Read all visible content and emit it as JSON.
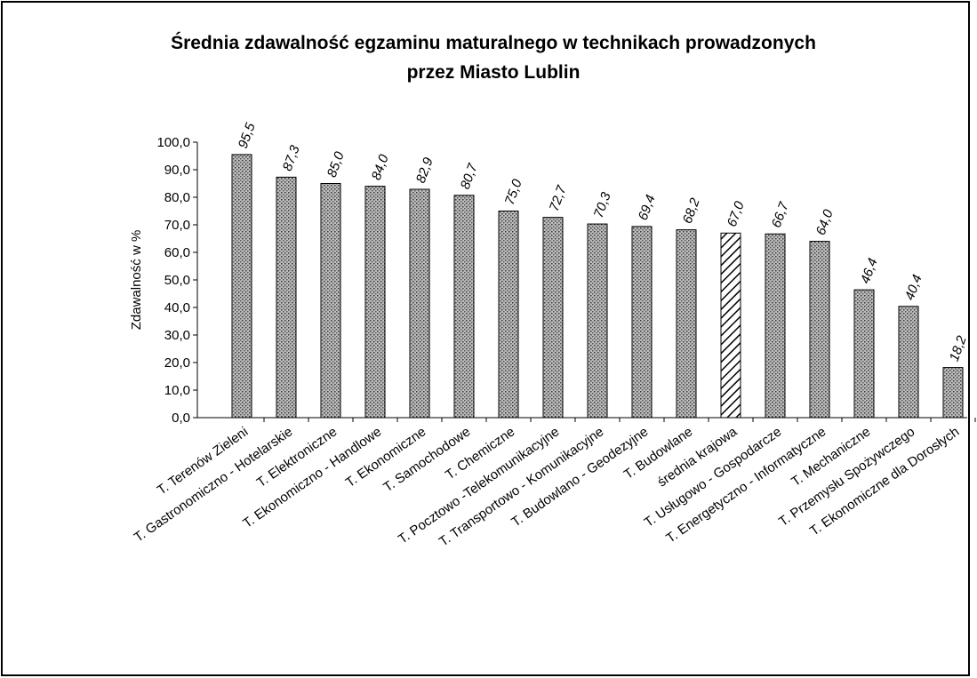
{
  "chart_data": {
    "type": "bar",
    "title": [
      "Średnia zdawalność egzaminu maturalnego w technikach prowadzonych",
      "przez Miasto Lublin"
    ],
    "y_label": "Zdawalność w %",
    "categories": [
      "T. Terenów Zieleni",
      "T. Gastronomiczno - Hotelarskie",
      "T. Elektroniczne",
      "T. Ekonomiczno - Handlowe",
      "T. Ekonomiczne",
      "T. Samochodowe",
      "T. Chemiczne",
      "T. Pocztowo -Telekomunikacyjne",
      "T. Transportowo - Komunikacyjne",
      "T. Budowlano - Geodezyjne",
      "T. Budowlane",
      "średnia krajowa",
      "T. Usługowo - Gospodarcze",
      "T. Energetyczno - Informatyczne",
      "T. Mechaniczne",
      "T. Przemysłu Spożywczego",
      "T. Ekonomiczne dla Dorosłych"
    ],
    "values": [
      95.5,
      87.3,
      85.0,
      84.0,
      82.9,
      80.7,
      75.0,
      72.7,
      70.3,
      69.4,
      68.2,
      67.0,
      66.7,
      64.0,
      46.4,
      40.4,
      18.2
    ],
    "value_labels": [
      "95,5",
      "87,3",
      "85,0",
      "84,0",
      "82,9",
      "80,7",
      "75,0",
      "72,7",
      "70,3",
      "69,4",
      "68,2",
      "67,0",
      "66,7",
      "64,0",
      "46,4",
      "40,4",
      "18,2"
    ],
    "patterns": [
      "dots",
      "dots",
      "dots",
      "dots",
      "dots",
      "dots",
      "dots",
      "dots",
      "dots",
      "dots",
      "dots",
      "hatch",
      "dots",
      "dots",
      "dots",
      "dots",
      "dots"
    ],
    "ylim": [
      0,
      100
    ],
    "yticks": [
      {
        "value": 0,
        "label": "0,0"
      },
      {
        "value": 10,
        "label": "10,0"
      },
      {
        "value": 20,
        "label": "20,0"
      },
      {
        "value": 30,
        "label": "30,0"
      },
      {
        "value": 40,
        "label": "40,0"
      },
      {
        "value": 50,
        "label": "50,0"
      },
      {
        "value": 60,
        "label": "60,0"
      },
      {
        "value": 70,
        "label": "70,0"
      },
      {
        "value": 80,
        "label": "80,0"
      },
      {
        "value": 90,
        "label": "90,0"
      },
      {
        "value": 100,
        "label": "100,0"
      }
    ],
    "grid": false
  }
}
